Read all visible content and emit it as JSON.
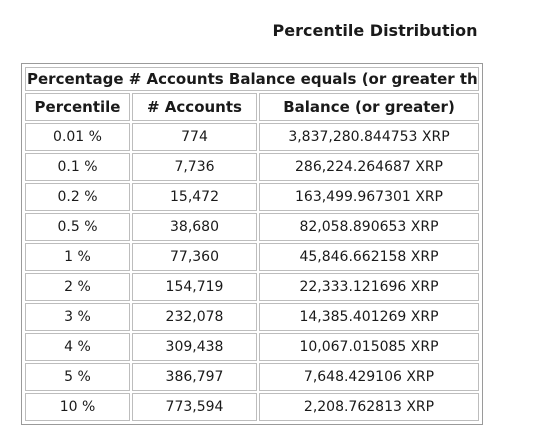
{
  "title": "Percentile Distribution",
  "table": {
    "caption": "Percentage # Accounts Balance equals (or greater than)",
    "headers": [
      "Percentile",
      "# Accounts",
      "Balance (or greater)"
    ],
    "rows": [
      [
        "0.01 %",
        "774",
        "3,837,280.844753 XRP"
      ],
      [
        "0.1 %",
        "7,736",
        "286,224.264687 XRP"
      ],
      [
        "0.2 %",
        "15,472",
        "163,499.967301 XRP"
      ],
      [
        "0.5 %",
        "38,680",
        "82,058.890653 XRP"
      ],
      [
        "1 %",
        "77,360",
        "45,846.662158 XRP"
      ],
      [
        "2 %",
        "154,719",
        "22,333.121696 XRP"
      ],
      [
        "3 %",
        "232,078",
        "14,385.401269 XRP"
      ],
      [
        "4 %",
        "309,438",
        "10,067.015085 XRP"
      ],
      [
        "5 %",
        "386,797",
        "7,648.429106 XRP"
      ],
      [
        "10 %",
        "773,594",
        "2,208.762813 XRP"
      ]
    ]
  }
}
